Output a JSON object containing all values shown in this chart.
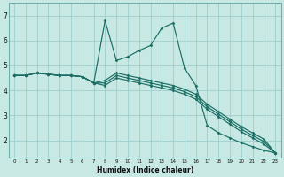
{
  "xlabel": "Humidex (Indice chaleur)",
  "bg_color": "#c8e8e4",
  "grid_color": "#9ecece",
  "line_color": "#1a6e64",
  "x_ticks": [
    0,
    1,
    2,
    3,
    4,
    5,
    6,
    7,
    8,
    9,
    10,
    11,
    12,
    13,
    14,
    15,
    16,
    17,
    18,
    19,
    20,
    21,
    22,
    23
  ],
  "y_ticks": [
    2,
    3,
    4,
    5,
    6,
    7
  ],
  "ylim": [
    1.3,
    7.5
  ],
  "xlim": [
    -0.5,
    23.5
  ],
  "lines": [
    {
      "x": [
        0,
        1,
        2,
        3,
        4,
        5,
        6,
        7,
        8,
        9,
        10,
        11,
        12,
        13,
        14,
        15,
        16,
        17,
        18,
        19,
        20,
        21,
        22,
        23
      ],
      "y": [
        4.6,
        4.6,
        4.7,
        4.65,
        4.6,
        4.6,
        4.55,
        4.3,
        6.8,
        5.2,
        5.35,
        5.6,
        5.8,
        6.5,
        6.7,
        4.9,
        4.2,
        2.6,
        2.3,
        2.1,
        1.9,
        1.75,
        1.6,
        1.5
      ]
    },
    {
      "x": [
        0,
        1,
        2,
        3,
        4,
        5,
        6,
        7,
        8,
        9,
        10,
        11,
        12,
        13,
        14,
        15,
        16,
        17,
        18,
        19,
        20,
        21,
        22,
        23
      ],
      "y": [
        4.6,
        4.6,
        4.7,
        4.65,
        4.6,
        4.6,
        4.55,
        4.3,
        4.4,
        4.7,
        4.6,
        4.5,
        4.4,
        4.3,
        4.2,
        4.05,
        3.85,
        3.45,
        3.15,
        2.85,
        2.55,
        2.3,
        2.05,
        1.5
      ]
    },
    {
      "x": [
        0,
        1,
        2,
        3,
        4,
        5,
        6,
        7,
        8,
        9,
        10,
        11,
        12,
        13,
        14,
        15,
        16,
        17,
        18,
        19,
        20,
        21,
        22,
        23
      ],
      "y": [
        4.6,
        4.6,
        4.7,
        4.65,
        4.6,
        4.6,
        4.55,
        4.3,
        4.3,
        4.6,
        4.5,
        4.4,
        4.3,
        4.2,
        4.1,
        3.95,
        3.75,
        3.35,
        3.05,
        2.75,
        2.45,
        2.2,
        1.95,
        1.5
      ]
    },
    {
      "x": [
        0,
        1,
        2,
        3,
        4,
        5,
        6,
        7,
        8,
        9,
        10,
        11,
        12,
        13,
        14,
        15,
        16,
        17,
        18,
        19,
        20,
        21,
        22,
        23
      ],
      "y": [
        4.6,
        4.6,
        4.7,
        4.65,
        4.6,
        4.6,
        4.55,
        4.3,
        4.2,
        4.5,
        4.4,
        4.3,
        4.2,
        4.1,
        4.0,
        3.85,
        3.65,
        3.25,
        2.95,
        2.65,
        2.35,
        2.1,
        1.85,
        1.5
      ]
    }
  ]
}
